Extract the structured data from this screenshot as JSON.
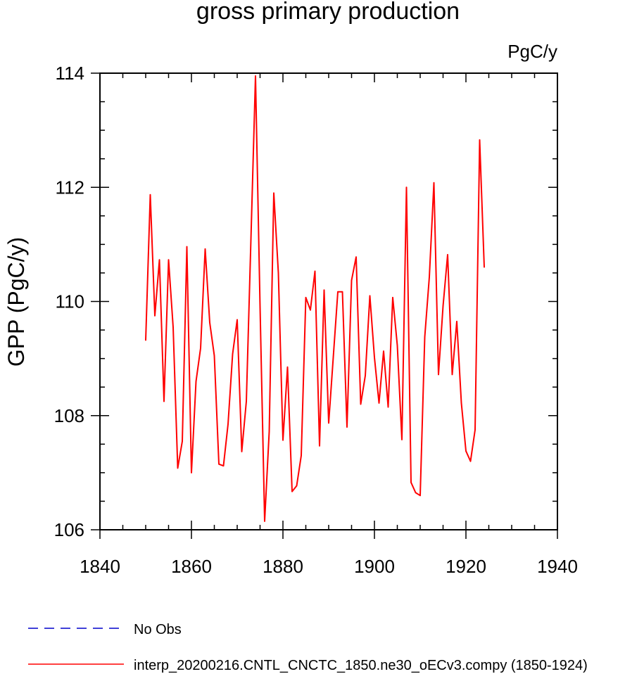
{
  "chart_data": {
    "type": "line",
    "title": "gross primary production",
    "units": "PgC/y",
    "ylabel": "GPP  (PgC/y)",
    "xlabel": "",
    "xlim": [
      1840,
      1940
    ],
    "ylim": [
      106,
      114
    ],
    "xticks": [
      1840,
      1860,
      1880,
      1900,
      1920,
      1940
    ],
    "yticks": [
      106,
      108,
      110,
      112,
      114
    ],
    "x_minor_step": 5,
    "y_minor_step": 0.5,
    "grid": false,
    "legend_position": "bottom",
    "legend": [
      {
        "label": "No Obs",
        "color": "#0000cc",
        "style": "dashed"
      },
      {
        "label": "interp_20200216.CNTL_CNCTC_1850.ne30_oECv3.compy (1850-1924)",
        "color": "#ff0000",
        "style": "solid"
      }
    ],
    "series": [
      {
        "color": "#ff0000",
        "x": [
          1850,
          1851,
          1852,
          1853,
          1854,
          1855,
          1856,
          1857,
          1858,
          1859,
          1860,
          1861,
          1862,
          1863,
          1864,
          1865,
          1866,
          1867,
          1868,
          1869,
          1870,
          1871,
          1872,
          1873,
          1874,
          1875,
          1876,
          1877,
          1878,
          1879,
          1880,
          1881,
          1882,
          1883,
          1884,
          1885,
          1886,
          1887,
          1888,
          1889,
          1890,
          1891,
          1892,
          1893,
          1894,
          1895,
          1896,
          1897,
          1898,
          1899,
          1900,
          1901,
          1902,
          1903,
          1904,
          1905,
          1906,
          1907,
          1908,
          1909,
          1910,
          1911,
          1912,
          1913,
          1914,
          1915,
          1916,
          1917,
          1918,
          1919,
          1920,
          1921,
          1922,
          1923,
          1924
        ],
        "values": [
          109.32,
          111.87,
          109.75,
          110.73,
          108.25,
          110.73,
          109.55,
          107.08,
          107.55,
          110.96,
          107.0,
          108.6,
          109.18,
          110.92,
          109.63,
          109.05,
          107.15,
          107.12,
          107.85,
          109.08,
          109.68,
          107.37,
          108.25,
          111.08,
          113.95,
          109.9,
          106.15,
          107.72,
          111.9,
          110.5,
          107.57,
          108.85,
          106.67,
          106.77,
          107.3,
          110.07,
          109.85,
          110.53,
          107.47,
          110.2,
          107.87,
          109.02,
          110.17,
          110.17,
          107.8,
          110.37,
          110.78,
          108.2,
          108.7,
          110.1,
          109.02,
          108.22,
          109.13,
          108.15,
          110.07,
          109.23,
          107.58,
          112.0,
          106.83,
          106.65,
          106.6,
          109.38,
          110.43,
          112.08,
          108.72,
          109.92,
          110.82,
          108.72,
          109.65,
          108.22,
          107.38,
          107.2,
          107.75,
          112.83,
          110.6
        ]
      }
    ]
  }
}
